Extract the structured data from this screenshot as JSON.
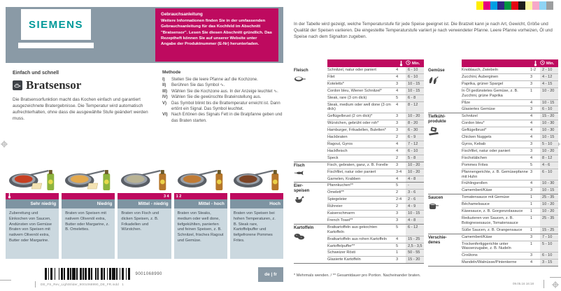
{
  "colors": {
    "magenta": "#BE0A5F",
    "slate": "#8A9AA6",
    "slate_light": "#CBD8DF",
    "teal": "#009999"
  },
  "print_marks": {
    "filename": "DE_FS_Rev_LightSlider_9001068990_DE_FR.indd",
    "page_number": "1",
    "datetime": "09.05.16  16:18",
    "color_bar": [
      "#FFED00",
      "#E6007E",
      "#009FE3",
      "#312783",
      "#009640",
      "#E30613",
      "#1D1D1B",
      "#FBF6A2",
      "#F6A8C9",
      "#8FD4F5",
      "#9C9E9F"
    ]
  },
  "left_page": {
    "brand": "SIEMENS",
    "kicker": "Einfach und schnell",
    "title": "Bratsensor",
    "intro": "Die Bratsensorfunktion macht das Kochen einfach und garantiert ausgezeichnete Bratergebnisse. Die Temperatur wird automatisch aufrechterhalten, ohne dass die ausgewählte Stufe geändert werden muss.",
    "info_box": {
      "title": "Gebrauchsanleitung",
      "body": "Weitere Informationen finden Sie in der umfassenden Gebrauchsanleitung für das Kochfeld im Abschnitt \"Bratsensor\". Lesen Sie diesen Abschnitt gründlich. Das Rezeptheft können Sie auf unserer Website unter Angabe der Produktnummer (E-Nr) herunterladen."
    },
    "methode": {
      "title": "Methode",
      "steps": [
        {
          "num": "I)",
          "text": "Stellen Sie die leere Pfanne auf die Kochzone."
        },
        {
          "num": "II)",
          "text": "Berühren Sie das Symbol ∿."
        },
        {
          "num": "III)",
          "text": "Wählen Sie die Kochzone aus. In der Anzeige leuchtet ∿."
        },
        {
          "num": "IV)",
          "text": "Wählen Sie die gewünschte Brateinstellung aus."
        },
        {
          "num": "V)",
          "text": "Das Symbol blinkt bis die Brattemperatur erreicht ist. Dann ertönt ein Signal. Das Symbol leuchtet."
        },
        {
          "num": "VI)",
          "text": "Nach Ertönen des Signals Fett in die Bratpfanne geben und das Braten starten."
        }
      ]
    },
    "levels": [
      {
        "label": "Sehr niedrig",
        "badge": "",
        "badge_align": "left",
        "has_thermo": true,
        "text": "Zubereitung und Einkochen von Saucen, Andünsten von Gemüse Braten von Speisen mit nativem Olivenöl extra, Butter oder Margarine.",
        "art": {
          "content": "#c63f22",
          "bottle": "#8db33e",
          "butter": true
        }
      },
      {
        "label": "Niedrig",
        "badge": "",
        "badge_align": "left",
        "has_thermo": false,
        "text": "Braten von Speisen mit nativem Olivenöl extra, Butter oder Margarine, z. B. Omelettes.",
        "art": {
          "content": "#e3a94e",
          "bottle": "#8db33e",
          "butter": true
        }
      },
      {
        "label": "Mittel - niedrig",
        "badge": "3 4",
        "badge_align": "right",
        "has_thermo": false,
        "text": "Braten von Fisch und dicken Speisen, z. B. Frikadellen und Würstchen.",
        "art": {
          "content": "#b9b394",
          "bottle": "#b5762a",
          "butter": false
        }
      },
      {
        "label": "Mittel - hoch",
        "badge": "1 2",
        "badge_align": "left",
        "has_thermo": false,
        "text": "Braten von Steaks, medium oder well done, tiefgekühlten, panierten und feinen Speisen, z. B. Schnitzel, frisches Ragout und Gemüse.",
        "art": {
          "content": "#c07b35",
          "bottle": "#b5762a",
          "butter": false
        }
      },
      {
        "label": "Hoch",
        "badge": "",
        "badge_align": "left",
        "has_thermo": false,
        "text": "Braten von Speisen bei hohen Temperaturen, z. B. Steak rare, Kartoffelpuffer und tiefgefrorene Pommes Frites.",
        "art": {
          "content": "#7c4426",
          "bottle": "#b5762a",
          "butter": false
        }
      }
    ],
    "barcode_number": "9001068990",
    "lang_badge": "de | fr"
  },
  "right_page": {
    "intro": "In der Tabelle wird gezeigt, welche Temperaturstufe für jede Speise geeignet ist. Die Bratzeit kann je nach Art, Gewicht, Größe und Qualität der Speisen variieren. Die eingestellte Temperaturstufe variiert je nach verwendeter Pfanne. Leere Pfanne vorheizen, Öl und Speise nach dem Signalton zugeben.",
    "header": {
      "min_label": "Min."
    },
    "footnote": "* Mehrmals wenden. / ** Gesamtdauer pro Portion. Nacheinander braten.",
    "tables": [
      {
        "sections": [
          {
            "category": "Fleisch",
            "icon": "pan-icon",
            "rows": [
              [
                "Schnitzel, natur oder paniert",
                "4",
                "6 - 10"
              ],
              [
                "Filet",
                "4",
                "6 - 10"
              ],
              [
                "Koteletts*",
                "3",
                "10 - 15"
              ],
              [
                "Cordon bleu, Wiener Schnitzel*",
                "4",
                "10 - 15"
              ],
              [
                "Steak, rare (3 cm dick)",
                "5",
                "6 - 8"
              ],
              [
                "Steak, medium oder well done (3 cm dick)",
                "4",
                "8 - 12"
              ],
              [
                "Geflügelbrust (2 cm dick)*",
                "3",
                "10 - 20"
              ],
              [
                "Würstchen, gebrüht oder roh*",
                "3",
                "8 - 20"
              ],
              [
                "Hamburger, Frikadellen, Buletten*",
                "3",
                "6 - 30"
              ],
              [
                "Hackbraten",
                "2",
                "6 - 9"
              ],
              [
                "Ragout, Gyros",
                "4",
                "7 - 12"
              ],
              [
                "Hackfleisch",
                "4",
                "6 - 10"
              ],
              [
                "Speck",
                "2",
                "5 - 8"
              ]
            ]
          },
          {
            "category": "Fisch",
            "icon": "fish-icon",
            "rows": [
              [
                "Fisch, gebraten, ganz, z. B. Forelle",
                "3",
                "10 - 20"
              ],
              [
                "Fischfilet, natur oder paniert",
                "3-4",
                "10 - 20"
              ],
              [
                "Garnelen, Krabben",
                "4",
                "4 - 8"
              ]
            ]
          },
          {
            "category": "Eier-\nspeisen",
            "icon": "egg-dishes-icon",
            "rows": [
              [
                "Pfannkuchen**",
                "5",
                "-"
              ],
              [
                "Omelett**",
                "2",
                "3 - 6"
              ],
              [
                "Spiegeleier",
                "2-4",
                "2 - 6"
              ],
              [
                "Rühreier",
                "2",
                "4 - 9"
              ],
              [
                "Kaiserschmarrn",
                "3",
                "10 - 15"
              ],
              [
                "French Toast**",
                "3",
                "4 - 8"
              ]
            ]
          },
          {
            "category": "Kartoffeln",
            "icon": "potatoes-icon",
            "rows": [
              [
                "Bratkartoffeln aus gekochten Kartoffeln",
                "5",
                "6 - 12"
              ],
              [
                "Bratkartoffeln aus rohen Kartoffeln",
                "4",
                "15 - 25"
              ],
              [
                "Kartoffelpuffer**",
                "5",
                "2,5 - 3,5"
              ],
              [
                "Schweizer Rösti",
                "1",
                "50 - 55"
              ],
              [
                "Glasierte Kartoffeln",
                "3",
                "15 - 20"
              ]
            ]
          }
        ]
      },
      {
        "sections": [
          {
            "category": "Gemüse",
            "icon": "vegetables-icon",
            "rows": [
              [
                "Knoblauch, Zwiebeln",
                "1-2",
                "2 - 10"
              ],
              [
                "Zucchini, Auberginen",
                "3",
                "4 - 12"
              ],
              [
                "Paprika, grüner Spargel",
                "3",
                "4 - 15"
              ],
              [
                "In Öl gedünstetes Gemüse, z. B. Zucchini, grüne Paprika",
                "1",
                "10 - 20"
              ],
              [
                "Pilze",
                "4",
                "10 - 15"
              ],
              [
                "Glasiertes Gemüse",
                "3",
                "6 - 10"
              ]
            ]
          },
          {
            "category": "Tiefkühl-\nprodukte",
            "icon": "frozen-products-icon",
            "rows": [
              [
                "Schnitzel",
                "4",
                "15 - 20"
              ],
              [
                "Cordon bleu*",
                "4",
                "10 - 30"
              ],
              [
                "Geflügelbrust*",
                "4",
                "10 - 30"
              ],
              [
                "Chicken Nuggets",
                "4",
                "10 - 15"
              ],
              [
                "Gyros, Kebab",
                "3",
                "5 - 10"
              ],
              [
                "Fischfilet, natur oder paniert",
                "3",
                "10 - 20"
              ],
              [
                "Fischstäbchen",
                "4",
                "8 - 12"
              ],
              [
                "Pommes Frites",
                "5",
                "4 - 6"
              ],
              [
                "Pfannengerichte, z. B. Gemüsepfanne mit Huhn",
                "3",
                "6 - 10"
              ],
              [
                "Frühlingsrollen",
                "4",
                "10 - 30"
              ],
              [
                "Camembert/Käse",
                "3",
                "10 - 15"
              ]
            ]
          },
          {
            "category": "Saucen",
            "icon": "sauce-pot-icon",
            "rows": [
              [
                "Tomatensauce mit Gemüse",
                "1",
                "25 - 35"
              ],
              [
                "Béchamelsauce",
                "1",
                "10 - 20"
              ],
              [
                "Käsesauce, z. B. Gorgonzolasauce",
                "1",
                "10 - 20"
              ],
              [
                "Reduzieren von Saucen, z. B. Bolognesesauce, Tomatensauce",
                "1",
                "25 - 35"
              ],
              [
                "Süße Saucen, z. B. Orangensauce",
                "1",
                "15 - 25"
              ]
            ]
          },
          {
            "category": "Verschie-\ndenes",
            "icon": null,
            "rows": [
              [
                "Camembert/Käse",
                "3",
                "7 - 10"
              ],
              [
                "Trockenfertiggerichte unter Wasserzugabe, z. B. Nudeln",
                "1",
                "5 - 10"
              ],
              [
                "Croûtons",
                "3",
                "6 - 10"
              ],
              [
                "Mandeln/Walnüsse/Pinienkerne",
                "4",
                "3 - 15"
              ]
            ]
          }
        ]
      }
    ]
  }
}
